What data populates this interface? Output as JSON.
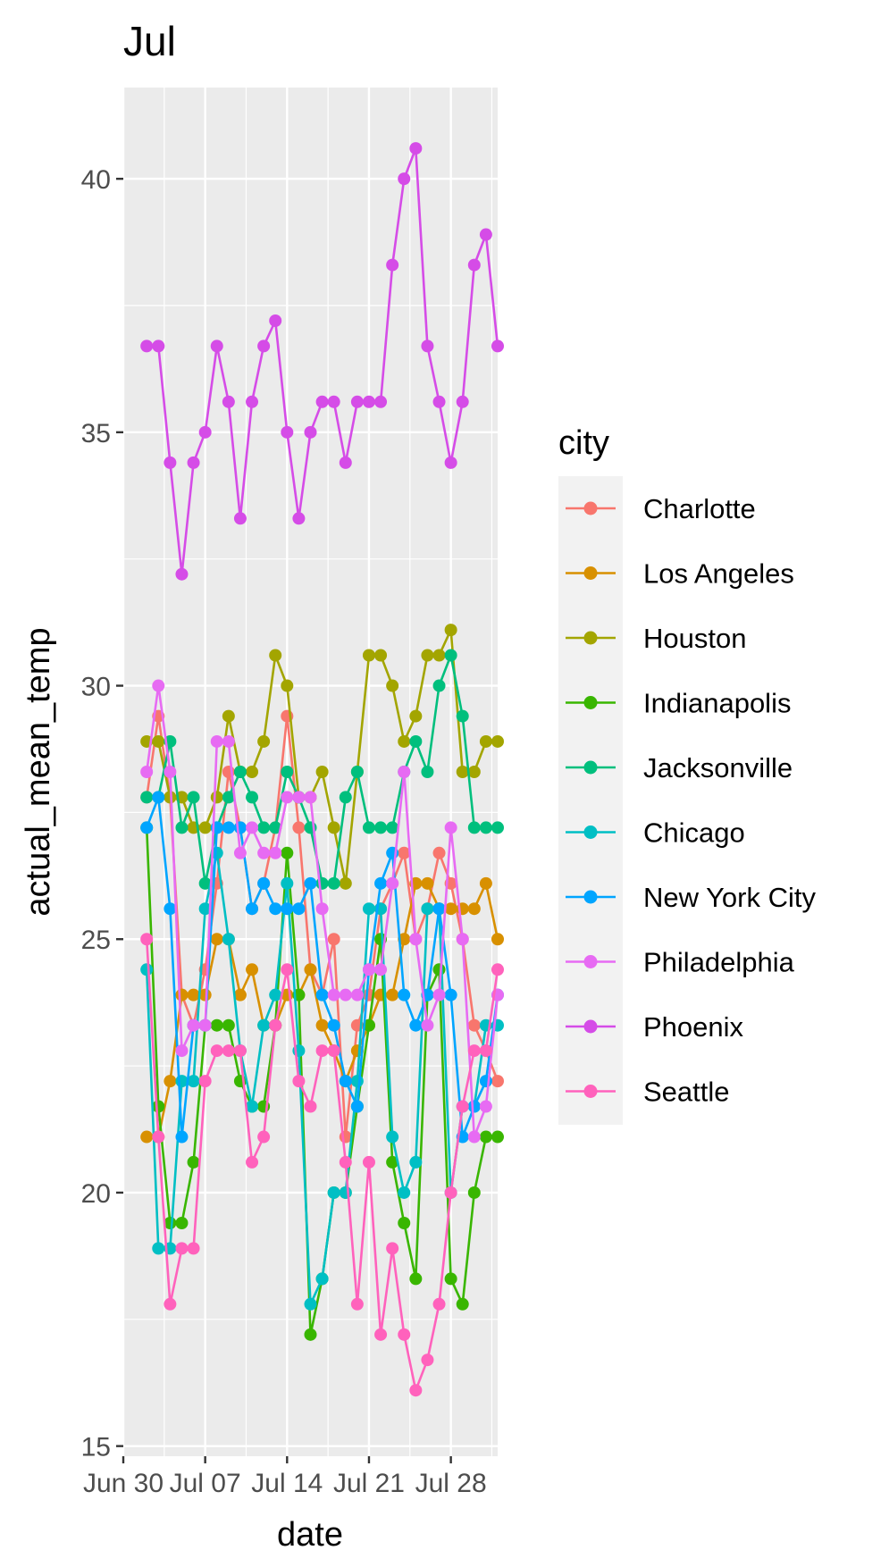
{
  "chart_data": {
    "type": "line",
    "title": "Jul",
    "xlabel": "date",
    "ylabel": "actual_mean_temp",
    "x_ticks": [
      "Jun 30",
      "Jul 07",
      "Jul 14",
      "Jul 21",
      "Jul 28"
    ],
    "y_ticks": [
      "15",
      "20",
      "25",
      "30",
      "35",
      "40"
    ],
    "ylim": [
      14.8,
      41.8
    ],
    "xlim": [
      "2015-06-29",
      "2015-07-31"
    ],
    "grid": true,
    "legend_position": "right",
    "legend_title": "city",
    "x": [
      "2015-07-01",
      "2015-07-02",
      "2015-07-03",
      "2015-07-04",
      "2015-07-05",
      "2015-07-06",
      "2015-07-07",
      "2015-07-08",
      "2015-07-09",
      "2015-07-10",
      "2015-07-11",
      "2015-07-12",
      "2015-07-13",
      "2015-07-14",
      "2015-07-15",
      "2015-07-16",
      "2015-07-17",
      "2015-07-18",
      "2015-07-19",
      "2015-07-20",
      "2015-07-21",
      "2015-07-22",
      "2015-07-23",
      "2015-07-24",
      "2015-07-25",
      "2015-07-26",
      "2015-07-27",
      "2015-07-28",
      "2015-07-29",
      "2015-07-30",
      "2015-07-31"
    ],
    "series": [
      {
        "name": "Charlotte",
        "color": "#F8766D",
        "values": [
          27.8,
          29.4,
          27.8,
          23.9,
          23.3,
          24.4,
          26.1,
          28.3,
          27.2,
          25.6,
          26.1,
          27.2,
          29.4,
          27.2,
          24.4,
          23.9,
          25.0,
          21.1,
          23.3,
          23.9,
          25.6,
          26.1,
          26.7,
          25.0,
          25.6,
          26.7,
          26.1,
          25.0,
          23.3,
          22.8,
          22.2
        ]
      },
      {
        "name": "Los Angeles",
        "color": "#D89000",
        "values": [
          21.1,
          21.1,
          22.2,
          23.9,
          23.9,
          23.9,
          25.0,
          25.0,
          23.9,
          24.4,
          23.3,
          23.3,
          23.9,
          23.9,
          24.4,
          23.3,
          22.8,
          22.2,
          22.8,
          23.3,
          23.9,
          23.9,
          25.0,
          26.1,
          26.1,
          25.6,
          25.6,
          25.6,
          25.6,
          26.1,
          25.0
        ]
      },
      {
        "name": "Houston",
        "color": "#A3A500",
        "values": [
          28.9,
          28.9,
          27.8,
          27.8,
          27.2,
          27.2,
          27.8,
          29.4,
          28.3,
          28.3,
          28.9,
          30.6,
          30.0,
          27.8,
          27.8,
          28.3,
          27.2,
          26.1,
          28.3,
          30.6,
          30.6,
          30.0,
          28.9,
          29.4,
          30.6,
          30.6,
          31.1,
          28.3,
          28.3,
          28.9,
          28.9
        ]
      },
      {
        "name": "Indianapolis",
        "color": "#39B600",
        "values": [
          27.2,
          21.7,
          19.4,
          19.4,
          20.6,
          23.3,
          23.3,
          23.3,
          22.2,
          21.7,
          21.7,
          23.3,
          26.7,
          23.9,
          17.2,
          18.3,
          20.0,
          20.0,
          21.7,
          23.3,
          25.0,
          20.6,
          19.4,
          18.3,
          23.9,
          24.4,
          18.3,
          17.8,
          20.0,
          21.1,
          21.1
        ]
      },
      {
        "name": "Jacksonville",
        "color": "#00BF7D",
        "values": [
          27.8,
          27.8,
          28.9,
          27.2,
          27.8,
          26.1,
          27.2,
          27.8,
          28.3,
          27.8,
          27.2,
          27.2,
          28.3,
          27.8,
          27.2,
          26.1,
          26.1,
          27.8,
          28.3,
          27.2,
          27.2,
          27.2,
          28.3,
          28.9,
          28.3,
          30.0,
          30.6,
          29.4,
          27.2,
          27.2,
          27.2
        ]
      },
      {
        "name": "Chicago",
        "color": "#00BFC4",
        "values": [
          24.4,
          18.9,
          18.9,
          22.2,
          22.2,
          25.6,
          26.7,
          25.0,
          22.8,
          21.7,
          23.3,
          23.9,
          26.1,
          22.8,
          17.8,
          18.3,
          20.0,
          20.0,
          22.2,
          25.6,
          25.6,
          21.1,
          20.0,
          20.6,
          25.6,
          25.6,
          20.0,
          21.7,
          21.7,
          23.3,
          23.3
        ]
      },
      {
        "name": "New York City",
        "color": "#00A5FF",
        "values": [
          27.2,
          27.8,
          25.6,
          21.1,
          23.3,
          23.3,
          27.2,
          27.2,
          27.2,
          25.6,
          26.1,
          25.6,
          25.6,
          25.6,
          26.1,
          23.9,
          23.3,
          22.2,
          21.7,
          24.4,
          26.1,
          26.7,
          23.9,
          23.3,
          23.9,
          25.6,
          23.9,
          21.1,
          21.7,
          22.2,
          23.9
        ]
      },
      {
        "name": "Philadelphia",
        "color": "#E76BF3",
        "values": [
          28.3,
          30.0,
          28.3,
          22.8,
          23.3,
          23.3,
          28.9,
          28.9,
          26.7,
          27.2,
          26.7,
          26.7,
          27.8,
          27.8,
          27.8,
          25.6,
          23.9,
          23.9,
          23.9,
          24.4,
          24.4,
          26.1,
          28.3,
          25.0,
          23.3,
          23.9,
          27.2,
          25.0,
          21.1,
          21.7,
          23.9
        ]
      },
      {
        "name": "Phoenix",
        "color": "#D54CE7",
        "values": [
          36.7,
          36.7,
          34.4,
          32.2,
          34.4,
          35.0,
          36.7,
          35.6,
          33.3,
          35.6,
          36.7,
          37.2,
          35.0,
          33.3,
          35.0,
          35.6,
          35.6,
          34.4,
          35.6,
          35.6,
          35.6,
          38.3,
          40.0,
          40.6,
          36.7,
          35.6,
          34.4,
          35.6,
          38.3,
          38.9,
          36.7
        ]
      },
      {
        "name": "Seattle",
        "color": "#FF62BC",
        "values": [
          25.0,
          21.1,
          17.8,
          18.9,
          18.9,
          22.2,
          22.8,
          22.8,
          22.8,
          20.6,
          21.1,
          23.3,
          24.4,
          22.2,
          21.7,
          22.8,
          22.8,
          20.6,
          17.8,
          20.6,
          17.2,
          18.9,
          17.2,
          16.1,
          16.7,
          17.8,
          20.0,
          21.7,
          22.8,
          22.8,
          24.4
        ]
      }
    ]
  },
  "colors": {
    "panel_background": "#EBEBEB",
    "grid_major": "#FFFFFF",
    "legend_key_background": "#F2F2F2",
    "tick_text": "#4D4D4D",
    "tick_mark": "#333333"
  }
}
